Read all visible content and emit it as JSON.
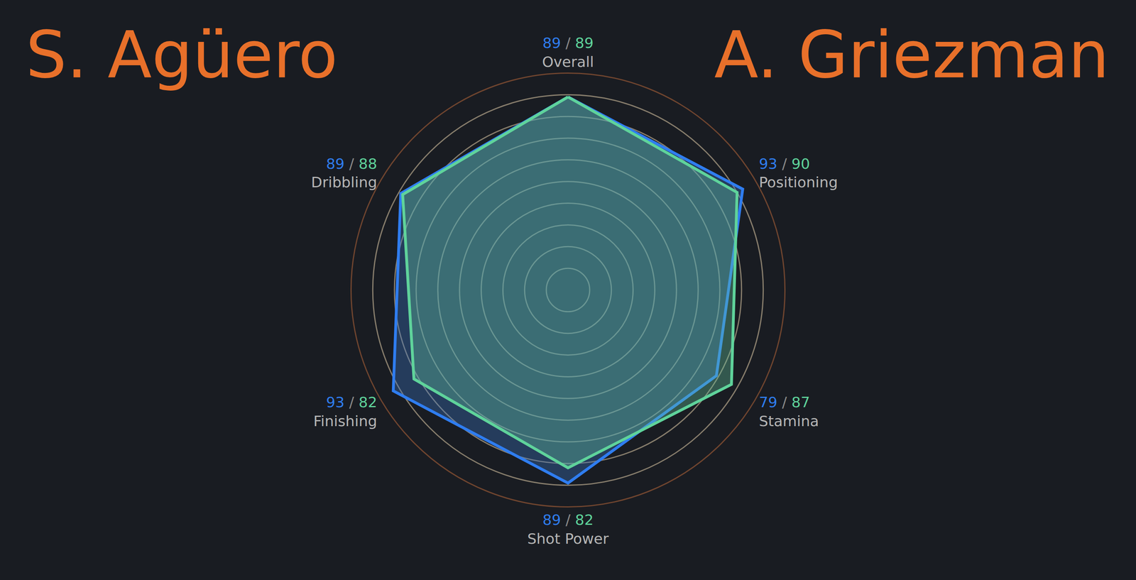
{
  "chart_data": {
    "type": "radar",
    "categories": [
      "Overall",
      "Positioning",
      "Stamina",
      "Shot Power",
      "Finishing",
      "Dribbling"
    ],
    "series": [
      {
        "name": "S. Agüero",
        "color": "#2f7df0",
        "values": [
          89,
          93,
          79,
          89,
          93,
          89
        ]
      },
      {
        "name": "A. Griezman",
        "color": "#5fd39b",
        "values": [
          89,
          90,
          87,
          82,
          82,
          88
        ]
      }
    ],
    "ylim": [
      0,
      100
    ],
    "yticks": [
      10,
      20,
      30,
      40,
      50,
      60,
      70,
      80,
      90,
      100
    ],
    "grid": true,
    "tick_labels": false,
    "data_labels": true,
    "label_separator": "/"
  }
}
